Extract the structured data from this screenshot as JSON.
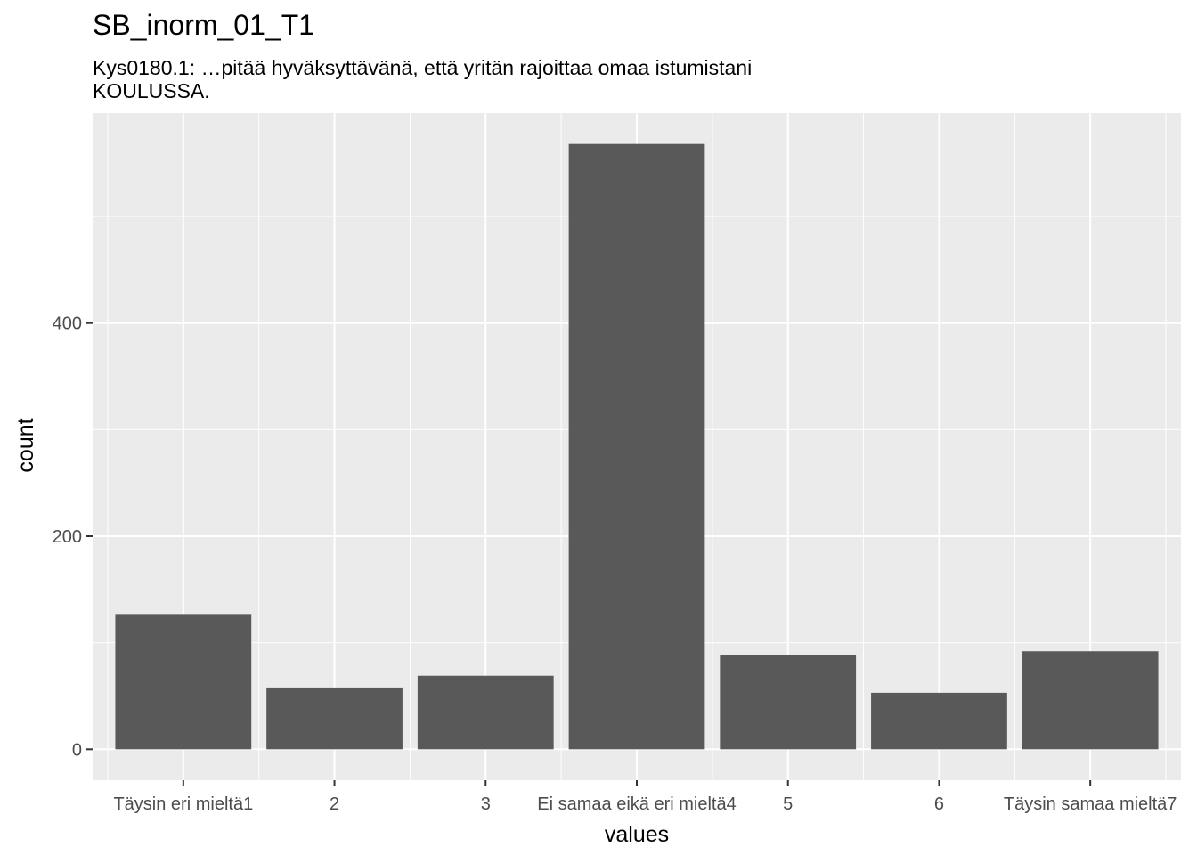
{
  "chart_data": {
    "type": "bar",
    "title": "SB_inorm_01_T1",
    "subtitle": "Kys0180.1: …pitää hyväksyttävänä, että yritän rajoittaa omaa istumistani KOULUSSA.",
    "xlabel": "values",
    "ylabel": "count",
    "categories": [
      "Täysin eri mieltä1",
      "2",
      "3",
      "Ei samaa eikä eri mieltä4",
      "5",
      "6",
      "Täysin samaa mieltä7"
    ],
    "values": [
      127,
      58,
      69,
      568,
      88,
      53,
      92
    ],
    "ylim": [
      -29,
      597
    ],
    "yticks": [
      0,
      200,
      400
    ],
    "grid": true,
    "colors": {
      "bar": "#595959",
      "panel": "#ebebeb",
      "grid": "#ffffff",
      "tick_text": "#4d4d4d",
      "tick_mark": "#333333"
    }
  }
}
